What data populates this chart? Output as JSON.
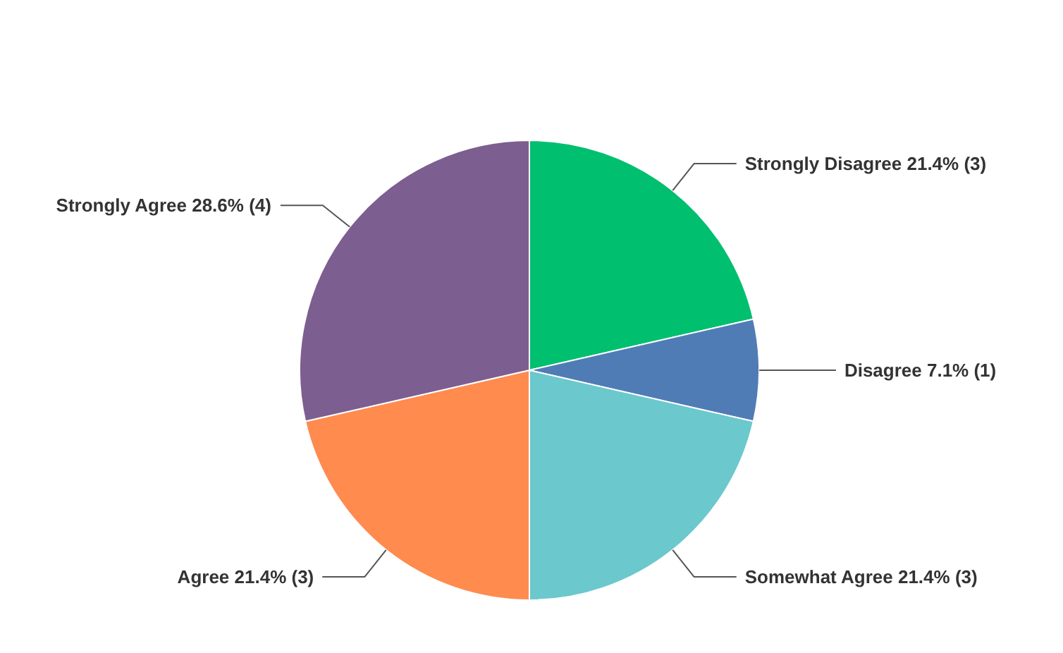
{
  "chart_data": {
    "type": "pie",
    "categories": [
      "Strongly Disagree",
      "Disagree",
      "Somewhat Agree",
      "Agree",
      "Strongly Agree"
    ],
    "values": [
      3,
      1,
      3,
      3,
      4
    ],
    "value_labels": [
      "21.4% (3)",
      "7.1% (1)",
      "21.4% (3)",
      "21.4% (3)",
      "28.6% (4)"
    ],
    "colors": [
      "#00bf6f",
      "#507cb6",
      "#6bc8cd",
      "#ff8b4f",
      "#7d5e90"
    ]
  }
}
